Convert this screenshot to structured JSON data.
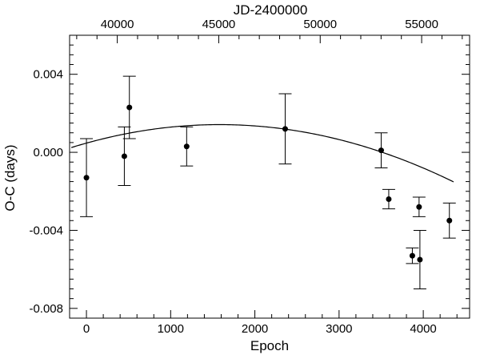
{
  "chart_data": {
    "type": "scatter",
    "xlabel": "Epoch",
    "ylabel": "O-C (days)",
    "top_axis_label": "JD-2400000",
    "xlim": [
      -200,
      4550
    ],
    "ylim": [
      -0.0085,
      0.006
    ],
    "x_ticks": [
      0,
      1000,
      2000,
      3000,
      4000
    ],
    "x_tick_labels": [
      "0",
      "1000",
      "2000",
      "3000",
      "4000"
    ],
    "y_ticks": [
      0.004,
      0.0,
      -0.004,
      -0.008
    ],
    "y_tick_labels": [
      "0.004",
      "0.000",
      "-0.004",
      "-0.008"
    ],
    "top_ticks": [
      40000,
      45000,
      50000,
      55000
    ],
    "top_tick_labels": [
      "40000",
      "45000",
      "50000",
      "55000"
    ],
    "top_axis_map": {
      "jd_at_epoch_0": 38480,
      "days_per_epoch": 4.15
    },
    "grid": false,
    "points": [
      {
        "x": 0,
        "y": -0.0013,
        "err": 0.002
      },
      {
        "x": 450,
        "y": -0.0002,
        "err": 0.0015
      },
      {
        "x": 510,
        "y": 0.0023,
        "err": 0.0016
      },
      {
        "x": 1190,
        "y": 0.0003,
        "err": 0.001
      },
      {
        "x": 2360,
        "y": 0.0012,
        "err": 0.0018
      },
      {
        "x": 3500,
        "y": 0.0001,
        "err": 0.0009
      },
      {
        "x": 3590,
        "y": -0.0024,
        "err": 0.0005
      },
      {
        "x": 3870,
        "y": -0.0053,
        "err": 0.0004
      },
      {
        "x": 3950,
        "y": -0.0028,
        "err": 0.0005
      },
      {
        "x": 3960,
        "y": -0.0055,
        "err": 0.0015
      },
      {
        "x": 4310,
        "y": -0.0035,
        "err": 0.0009
      }
    ],
    "fit_curve": {
      "type": "quadratic",
      "vertex_x": 1580,
      "vertex_y": 0.00142,
      "a": -3.8e-10,
      "x_range": [
        -180,
        4370
      ]
    }
  }
}
